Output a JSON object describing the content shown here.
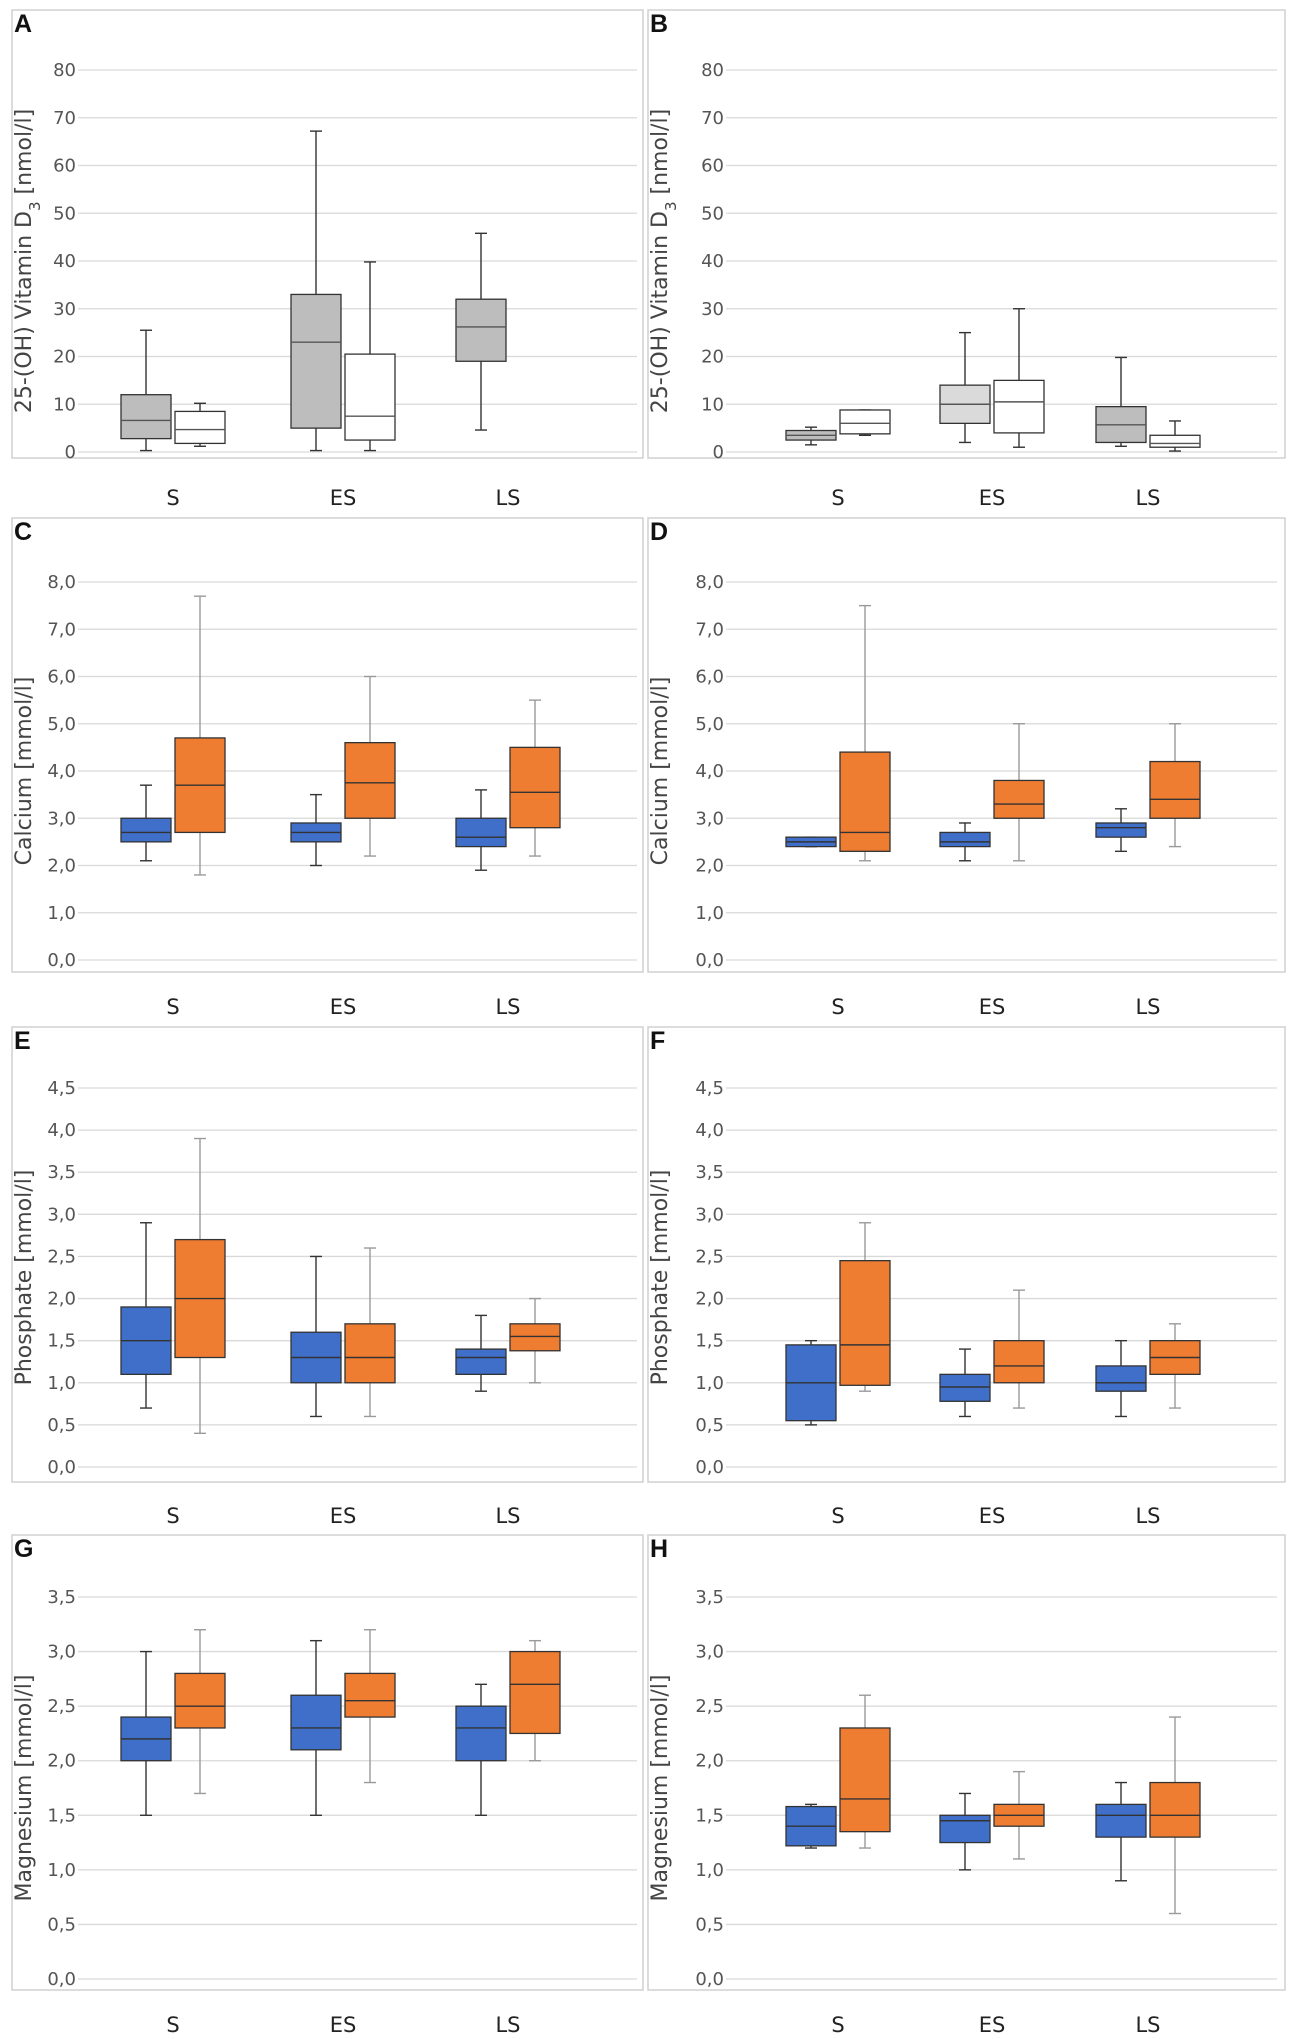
{
  "figure": {
    "colors": {
      "grey_fill": "#bdbdbd",
      "lightgrey_fill": "#dadada",
      "white_fill": "#ffffff",
      "blue_fill": "#3f6fc9",
      "orange_fill": "#ef7d31",
      "box_stroke": "#333333"
    }
  },
  "chart_data": [
    {
      "panel": "A",
      "type": "box",
      "ylabel": "25-(OH) Vitamin D",
      "ylabel_sub": "3",
      "ylabel_unit": " [nmol/l]",
      "ylim": [
        0,
        80
      ],
      "yticks": [
        {
          "v": 0,
          "label": "0"
        },
        {
          "v": 10,
          "label": "10"
        },
        {
          "v": 20,
          "label": "20"
        },
        {
          "v": 30,
          "label": "30"
        },
        {
          "v": 40,
          "label": "40"
        },
        {
          "v": 50,
          "label": "50"
        },
        {
          "v": 60,
          "label": "60"
        },
        {
          "v": 70,
          "label": "70"
        },
        {
          "v": 80,
          "label": "80"
        }
      ],
      "categories": [
        "S",
        "ES",
        "LS"
      ],
      "boxes": [
        {
          "cat": 0,
          "slot": 0,
          "color": "grey",
          "min": 0.3,
          "q1": 2.8,
          "median": 6.6,
          "q3": 12,
          "max": 25.5
        },
        {
          "cat": 0,
          "slot": 1,
          "color": "white",
          "min": 1.2,
          "q1": 1.8,
          "median": 4.7,
          "q3": 8.5,
          "max": 10.2
        },
        {
          "cat": 1,
          "slot": 0,
          "color": "grey",
          "min": 0.3,
          "q1": 5,
          "median": 23,
          "q3": 33,
          "max": 67.2
        },
        {
          "cat": 1,
          "slot": 1,
          "color": "white",
          "min": 0.3,
          "q1": 2.5,
          "median": 7.5,
          "q3": 20.5,
          "max": 39.8
        },
        {
          "cat": 2,
          "slot": 0,
          "color": "grey",
          "min": 4.6,
          "q1": 19,
          "median": 26.2,
          "q3": 32,
          "max": 45.8
        }
      ]
    },
    {
      "panel": "B",
      "type": "box",
      "ylabel": "25-(OH) Vitamin D",
      "ylabel_sub": "3",
      "ylabel_unit": " [nmol/l]",
      "ylim": [
        0,
        80
      ],
      "yticks": [
        {
          "v": 0,
          "label": "0"
        },
        {
          "v": 10,
          "label": "10"
        },
        {
          "v": 20,
          "label": "20"
        },
        {
          "v": 30,
          "label": "30"
        },
        {
          "v": 40,
          "label": "40"
        },
        {
          "v": 50,
          "label": "50"
        },
        {
          "v": 60,
          "label": "60"
        },
        {
          "v": 70,
          "label": "70"
        },
        {
          "v": 80,
          "label": "80"
        }
      ],
      "categories": [
        "S",
        "ES",
        "LS"
      ],
      "boxes": [
        {
          "cat": 0,
          "slot": 0,
          "color": "grey",
          "min": 1.5,
          "q1": 2.5,
          "median": 3.5,
          "q3": 4.5,
          "max": 5.2
        },
        {
          "cat": 0,
          "slot": 1,
          "color": "white",
          "min": 3.5,
          "q1": 3.8,
          "median": 6,
          "q3": 8.8,
          "max": 8.8
        },
        {
          "cat": 1,
          "slot": 0,
          "color": "lightgrey",
          "min": 2,
          "q1": 6,
          "median": 10,
          "q3": 14,
          "max": 25
        },
        {
          "cat": 1,
          "slot": 1,
          "color": "white",
          "min": 1,
          "q1": 4,
          "median": 10.5,
          "q3": 15,
          "max": 30
        },
        {
          "cat": 2,
          "slot": 0,
          "color": "grey",
          "min": 1.2,
          "q1": 2,
          "median": 5.7,
          "q3": 9.5,
          "max": 19.8
        },
        {
          "cat": 2,
          "slot": 1,
          "color": "white",
          "min": 0.2,
          "q1": 1,
          "median": 1.8,
          "q3": 3.5,
          "max": 6.5
        }
      ]
    },
    {
      "panel": "C",
      "type": "box",
      "ylabel": "Calcium [mmol/l]",
      "ylim": [
        0,
        8
      ],
      "yticks": [
        {
          "v": 0,
          "label": "0,0"
        },
        {
          "v": 1,
          "label": "1,0"
        },
        {
          "v": 2,
          "label": "2,0"
        },
        {
          "v": 3,
          "label": "3,0"
        },
        {
          "v": 4,
          "label": "4,0"
        },
        {
          "v": 5,
          "label": "5,0"
        },
        {
          "v": 6,
          "label": "6,0"
        },
        {
          "v": 7,
          "label": "7,0"
        },
        {
          "v": 8,
          "label": "8,0"
        }
      ],
      "categories": [
        "S",
        "ES",
        "LS"
      ],
      "boxes": [
        {
          "cat": 0,
          "slot": 0,
          "color": "blue",
          "min": 2.1,
          "q1": 2.5,
          "median": 2.7,
          "q3": 3.0,
          "max": 3.7
        },
        {
          "cat": 0,
          "slot": 1,
          "color": "orange",
          "min": 1.8,
          "q1": 2.7,
          "median": 3.7,
          "q3": 4.7,
          "max": 7.7
        },
        {
          "cat": 1,
          "slot": 0,
          "color": "blue",
          "min": 2.0,
          "q1": 2.5,
          "median": 2.7,
          "q3": 2.9,
          "max": 3.5
        },
        {
          "cat": 1,
          "slot": 1,
          "color": "orange",
          "min": 2.2,
          "q1": 3.0,
          "median": 3.75,
          "q3": 4.6,
          "max": 6.0
        },
        {
          "cat": 2,
          "slot": 0,
          "color": "blue",
          "min": 1.9,
          "q1": 2.4,
          "median": 2.6,
          "q3": 3.0,
          "max": 3.6
        },
        {
          "cat": 2,
          "slot": 1,
          "color": "orange",
          "min": 2.2,
          "q1": 2.8,
          "median": 3.55,
          "q3": 4.5,
          "max": 5.5
        }
      ]
    },
    {
      "panel": "D",
      "type": "box",
      "ylabel": "Calcium [mmol/l]",
      "ylim": [
        0,
        8
      ],
      "yticks": [
        {
          "v": 0,
          "label": "0,0"
        },
        {
          "v": 1,
          "label": "1,0"
        },
        {
          "v": 2,
          "label": "2,0"
        },
        {
          "v": 3,
          "label": "3,0"
        },
        {
          "v": 4,
          "label": "4,0"
        },
        {
          "v": 5,
          "label": "5,0"
        },
        {
          "v": 6,
          "label": "6,0"
        },
        {
          "v": 7,
          "label": "7,0"
        },
        {
          "v": 8,
          "label": "8,0"
        }
      ],
      "categories": [
        "S",
        "ES",
        "LS"
      ],
      "boxes": [
        {
          "cat": 0,
          "slot": 0,
          "color": "blue",
          "min": 2.4,
          "q1": 2.4,
          "median": 2.5,
          "q3": 2.6,
          "max": 2.6
        },
        {
          "cat": 0,
          "slot": 1,
          "color": "orange",
          "min": 2.1,
          "q1": 2.3,
          "median": 2.7,
          "q3": 4.4,
          "max": 7.5
        },
        {
          "cat": 1,
          "slot": 0,
          "color": "blue",
          "min": 2.1,
          "q1": 2.4,
          "median": 2.5,
          "q3": 2.7,
          "max": 2.9
        },
        {
          "cat": 1,
          "slot": 1,
          "color": "orange",
          "min": 2.1,
          "q1": 3.0,
          "median": 3.3,
          "q3": 3.8,
          "max": 5.0
        },
        {
          "cat": 2,
          "slot": 0,
          "color": "blue",
          "min": 2.3,
          "q1": 2.6,
          "median": 2.8,
          "q3": 2.9,
          "max": 3.2
        },
        {
          "cat": 2,
          "slot": 1,
          "color": "orange",
          "min": 2.4,
          "q1": 3.0,
          "median": 3.4,
          "q3": 4.2,
          "max": 5.0
        }
      ]
    },
    {
      "panel": "E",
      "type": "box",
      "ylabel": "Phosphate [mmol/l]",
      "ylim": [
        0,
        4.5
      ],
      "yticks": [
        {
          "v": 0,
          "label": "0,0"
        },
        {
          "v": 0.5,
          "label": "0,5"
        },
        {
          "v": 1,
          "label": "1,0"
        },
        {
          "v": 1.5,
          "label": "1,5"
        },
        {
          "v": 2,
          "label": "2,0"
        },
        {
          "v": 2.5,
          "label": "2,5"
        },
        {
          "v": 3,
          "label": "3,0"
        },
        {
          "v": 3.5,
          "label": "3,5"
        },
        {
          "v": 4,
          "label": "4,0"
        },
        {
          "v": 4.5,
          "label": "4,5"
        }
      ],
      "categories": [
        "S",
        "ES",
        "LS"
      ],
      "boxes": [
        {
          "cat": 0,
          "slot": 0,
          "color": "blue",
          "min": 0.7,
          "q1": 1.1,
          "median": 1.5,
          "q3": 1.9,
          "max": 2.9
        },
        {
          "cat": 0,
          "slot": 1,
          "color": "orange",
          "min": 0.4,
          "q1": 1.3,
          "median": 2.0,
          "q3": 2.7,
          "max": 3.9
        },
        {
          "cat": 1,
          "slot": 0,
          "color": "blue",
          "min": 0.6,
          "q1": 1.0,
          "median": 1.3,
          "q3": 1.6,
          "max": 2.5
        },
        {
          "cat": 1,
          "slot": 1,
          "color": "orange",
          "min": 0.6,
          "q1": 1.0,
          "median": 1.3,
          "q3": 1.7,
          "max": 2.6
        },
        {
          "cat": 2,
          "slot": 0,
          "color": "blue",
          "min": 0.9,
          "q1": 1.1,
          "median": 1.3,
          "q3": 1.4,
          "max": 1.8
        },
        {
          "cat": 2,
          "slot": 1,
          "color": "orange",
          "min": 1.0,
          "q1": 1.38,
          "median": 1.55,
          "q3": 1.7,
          "max": 2.0
        }
      ]
    },
    {
      "panel": "F",
      "type": "box",
      "ylabel": "Phosphate [mmol/l]",
      "ylim": [
        0,
        4.5
      ],
      "yticks": [
        {
          "v": 0,
          "label": "0,0"
        },
        {
          "v": 0.5,
          "label": "0,5"
        },
        {
          "v": 1,
          "label": "1,0"
        },
        {
          "v": 1.5,
          "label": "1,5"
        },
        {
          "v": 2,
          "label": "2,0"
        },
        {
          "v": 2.5,
          "label": "2,5"
        },
        {
          "v": 3,
          "label": "3,0"
        },
        {
          "v": 3.5,
          "label": "3,5"
        },
        {
          "v": 4,
          "label": "4,0"
        },
        {
          "v": 4.5,
          "label": "4,5"
        }
      ],
      "categories": [
        "S",
        "ES",
        "LS"
      ],
      "boxes": [
        {
          "cat": 0,
          "slot": 0,
          "color": "blue",
          "min": 0.5,
          "q1": 0.55,
          "median": 1.0,
          "q3": 1.45,
          "max": 1.5
        },
        {
          "cat": 0,
          "slot": 1,
          "color": "orange",
          "min": 0.9,
          "q1": 0.97,
          "median": 1.45,
          "q3": 2.45,
          "max": 2.9
        },
        {
          "cat": 1,
          "slot": 0,
          "color": "blue",
          "min": 0.6,
          "q1": 0.78,
          "median": 0.95,
          "q3": 1.1,
          "max": 1.4
        },
        {
          "cat": 1,
          "slot": 1,
          "color": "orange",
          "min": 0.7,
          "q1": 1.0,
          "median": 1.2,
          "q3": 1.5,
          "max": 2.1
        },
        {
          "cat": 2,
          "slot": 0,
          "color": "blue",
          "min": 0.6,
          "q1": 0.9,
          "median": 1.0,
          "q3": 1.2,
          "max": 1.5
        },
        {
          "cat": 2,
          "slot": 1,
          "color": "orange",
          "min": 0.7,
          "q1": 1.1,
          "median": 1.3,
          "q3": 1.5,
          "max": 1.7
        }
      ]
    },
    {
      "panel": "G",
      "type": "box",
      "ylabel": "Magnesium [mmol/l]",
      "ylim": [
        0,
        3.5
      ],
      "yticks": [
        {
          "v": 0,
          "label": "0,0"
        },
        {
          "v": 0.5,
          "label": "0,5"
        },
        {
          "v": 1,
          "label": "1,0"
        },
        {
          "v": 1.5,
          "label": "1,5"
        },
        {
          "v": 2,
          "label": "2,0"
        },
        {
          "v": 2.5,
          "label": "2,5"
        },
        {
          "v": 3,
          "label": "3,0"
        },
        {
          "v": 3.5,
          "label": "3,5"
        }
      ],
      "categories": [
        "S",
        "ES",
        "LS"
      ],
      "boxes": [
        {
          "cat": 0,
          "slot": 0,
          "color": "blue",
          "min": 1.5,
          "q1": 2.0,
          "median": 2.2,
          "q3": 2.4,
          "max": 3.0
        },
        {
          "cat": 0,
          "slot": 1,
          "color": "orange",
          "min": 1.7,
          "q1": 2.3,
          "median": 2.5,
          "q3": 2.8,
          "max": 3.2
        },
        {
          "cat": 1,
          "slot": 0,
          "color": "blue",
          "min": 1.5,
          "q1": 2.1,
          "median": 2.3,
          "q3": 2.6,
          "max": 3.1
        },
        {
          "cat": 1,
          "slot": 1,
          "color": "orange",
          "min": 1.8,
          "q1": 2.4,
          "median": 2.55,
          "q3": 2.8,
          "max": 3.2
        },
        {
          "cat": 2,
          "slot": 0,
          "color": "blue",
          "min": 1.5,
          "q1": 2.0,
          "median": 2.3,
          "q3": 2.5,
          "max": 2.7
        },
        {
          "cat": 2,
          "slot": 1,
          "color": "orange",
          "min": 2.0,
          "q1": 2.25,
          "median": 2.7,
          "q3": 3.0,
          "max": 3.1
        }
      ]
    },
    {
      "panel": "H",
      "type": "box",
      "ylabel": "Magnesium [mmol/l]",
      "ylim": [
        0,
        3.5
      ],
      "yticks": [
        {
          "v": 0,
          "label": "0,0"
        },
        {
          "v": 0.5,
          "label": "0,5"
        },
        {
          "v": 1,
          "label": "1,0"
        },
        {
          "v": 1.5,
          "label": "1,5"
        },
        {
          "v": 2,
          "label": "2,0"
        },
        {
          "v": 2.5,
          "label": "2,5"
        },
        {
          "v": 3,
          "label": "3,0"
        },
        {
          "v": 3.5,
          "label": "3,5"
        }
      ],
      "categories": [
        "S",
        "ES",
        "LS"
      ],
      "boxes": [
        {
          "cat": 0,
          "slot": 0,
          "color": "blue",
          "min": 1.2,
          "q1": 1.22,
          "median": 1.4,
          "q3": 1.58,
          "max": 1.6
        },
        {
          "cat": 0,
          "slot": 1,
          "color": "orange",
          "min": 1.2,
          "q1": 1.35,
          "median": 1.65,
          "q3": 2.3,
          "max": 2.6
        },
        {
          "cat": 1,
          "slot": 0,
          "color": "blue",
          "min": 1.0,
          "q1": 1.25,
          "median": 1.45,
          "q3": 1.5,
          "max": 1.7
        },
        {
          "cat": 1,
          "slot": 1,
          "color": "orange",
          "min": 1.1,
          "q1": 1.4,
          "median": 1.5,
          "q3": 1.6,
          "max": 1.9
        },
        {
          "cat": 2,
          "slot": 0,
          "color": "blue",
          "min": 0.9,
          "q1": 1.3,
          "median": 1.5,
          "q3": 1.6,
          "max": 1.8
        },
        {
          "cat": 2,
          "slot": 1,
          "color": "orange",
          "min": 0.6,
          "q1": 1.3,
          "median": 1.5,
          "q3": 1.8,
          "max": 2.4
        }
      ]
    }
  ]
}
